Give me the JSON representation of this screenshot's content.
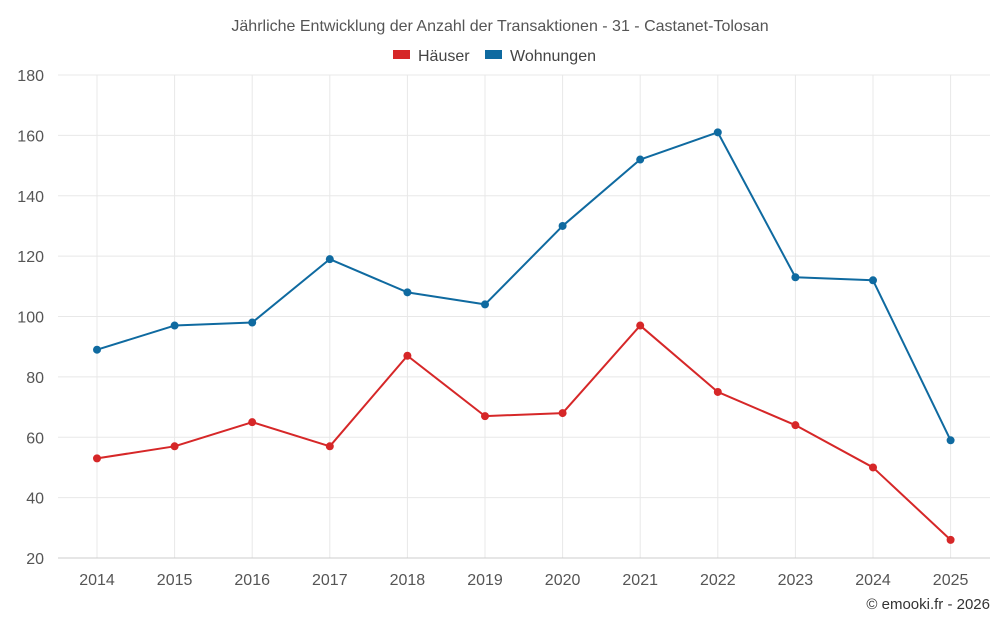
{
  "chart_data": {
    "type": "line",
    "title": "Jährliche Entwicklung der Anzahl der Transaktionen - 31 - Castanet-Tolosan",
    "categories": [
      "2014",
      "2015",
      "2016",
      "2017",
      "2018",
      "2019",
      "2020",
      "2021",
      "2022",
      "2023",
      "2024",
      "2025"
    ],
    "series": [
      {
        "name": "Häuser",
        "color": "#d62728",
        "values": [
          53,
          57,
          65,
          57,
          87,
          67,
          68,
          97,
          75,
          64,
          50,
          26
        ]
      },
      {
        "name": "Wohnungen",
        "color": "#0f6aa0",
        "values": [
          89,
          97,
          98,
          119,
          108,
          104,
          130,
          152,
          161,
          113,
          112,
          59
        ]
      }
    ],
    "ylim": [
      20,
      180
    ],
    "yticks": [
      20,
      40,
      60,
      80,
      100,
      120,
      140,
      160,
      180
    ],
    "grid": true,
    "legend_position": "top-center",
    "xlabel": "",
    "ylabel": ""
  },
  "credit": "© emooki.fr - 2026"
}
